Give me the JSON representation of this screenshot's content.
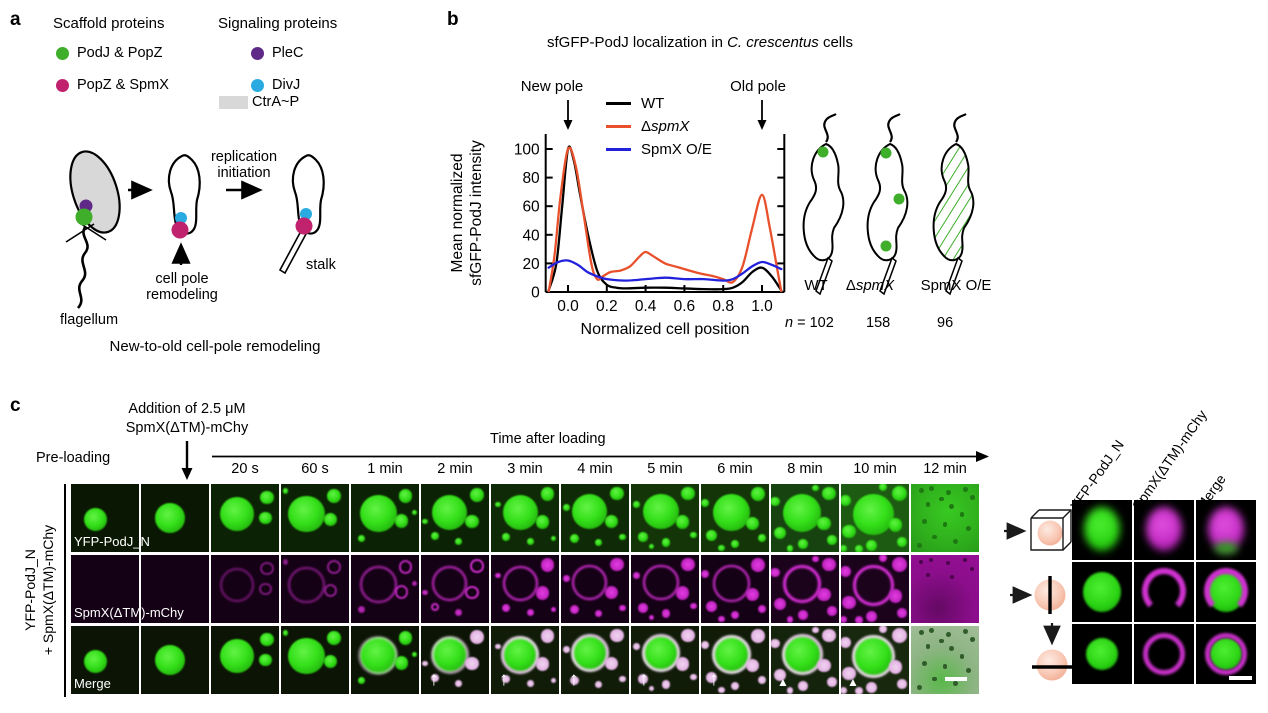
{
  "figure": {
    "panel_a": {
      "label": "a",
      "scaffold": {
        "title": "Scaffold proteins",
        "items": [
          {
            "label": "PodJ & PopZ",
            "color": "#3fae2a"
          },
          {
            "label": "PopZ & SpmX",
            "color": "#c0226e"
          }
        ]
      },
      "signaling": {
        "title": "Signaling proteins",
        "items": [
          {
            "label": "PleC",
            "color": "#5f2a87",
            "shape": "circle"
          },
          {
            "label": "DivJ",
            "color": "#29abe2",
            "shape": "circle"
          },
          {
            "label": "CtrA~P",
            "color": "#d8d8d8",
            "shape": "rect"
          }
        ]
      },
      "diagram": {
        "replication_line1": "replication",
        "replication_line2": "initiation",
        "cell_pole_line1": "cell pole",
        "cell_pole_line2": "remodeling",
        "flagellum": "flagellum",
        "stalk": "stalk",
        "caption": "New-to-old cell-pole remodeling"
      }
    },
    "panel_b": {
      "label": "b",
      "title_prefix": "sfGFP-PodJ localization in ",
      "title_italic": "C. crescentus",
      "title_suffix": " cells",
      "new_pole": "New pole",
      "old_pole": "Old pole",
      "legend": [
        {
          "delta": "",
          "text": "WT",
          "italic": false,
          "color": "#000000"
        },
        {
          "delta": "Δ",
          "text": "spmX",
          "italic": true,
          "color": "#e8512b"
        },
        {
          "delta": "",
          "text": "SpmX O/E",
          "italic": false,
          "color": "#2222dd"
        }
      ],
      "cells": {
        "labels": [
          {
            "delta": "",
            "text": "WT",
            "italic": false
          },
          {
            "delta": "Δ",
            "text": "spmX",
            "italic": true
          },
          {
            "delta": "",
            "text": "SpmX O/E",
            "italic": false
          }
        ],
        "n_symbol": "n",
        "n_eq": " = ",
        "n_values": [
          "102",
          "158",
          "96"
        ]
      }
    },
    "panel_c": {
      "label": "c",
      "addition_line1": "Addition of 2.5 μM",
      "addition_line2": "SpmX(ΔTM)-mChy",
      "preloading": "Pre-loading",
      "time_axis_label": "Time after loading",
      "timepoints": [
        "20 s",
        "60 s",
        "1 min",
        "2 min",
        "3 min",
        "4 min",
        "5 min",
        "6 min",
        "8 min",
        "10 min",
        "12 min"
      ],
      "row_labels": [
        "YFP-PodJ_N",
        "SpmX(ΔTM)-mChy",
        "Merge"
      ],
      "side_label_line1": "YFP-PodJ_N",
      "side_label_line2": "+ SpmX(ΔTM)-mChy",
      "icons": {
        "white_arrow": "↑",
        "white_arrowhead": "▲"
      },
      "right_grid": {
        "col_labels": [
          "YFP-PodJ_N",
          "SpmX(ΔTM)-mChy",
          "Merge"
        ]
      },
      "colors": {
        "droplet_green": "#35e81c",
        "mchy_magenta": "#d42ad4"
      }
    }
  },
  "chart_data": {
    "type": "line",
    "title": "sfGFP-PodJ localization in C. crescentus cells",
    "xlabel": "Normalized cell position",
    "ylabel": "Mean normalized sfGFP-PodJ intensity",
    "ylabel_lines": [
      "Mean normalized",
      "sfGFP-PodJ intensity"
    ],
    "xlim": [
      -0.115,
      1.115
    ],
    "ylim": [
      0,
      107
    ],
    "xticks": [
      0.0,
      0.2,
      0.4,
      0.6,
      0.8,
      1.0
    ],
    "yticks": [
      0,
      20,
      40,
      60,
      80,
      100
    ],
    "grid": false,
    "legend_position": "top-center",
    "annotations": [
      {
        "text": "New pole",
        "x": 0.0
      },
      {
        "text": "Old pole",
        "x": 1.0
      }
    ],
    "series": [
      {
        "name": "WT",
        "color": "#000000",
        "points": [
          [
            -0.1,
            1
          ],
          [
            -0.06,
            20
          ],
          [
            -0.03,
            60
          ],
          [
            0.0,
            100
          ],
          [
            0.03,
            92
          ],
          [
            0.06,
            70
          ],
          [
            0.1,
            42
          ],
          [
            0.15,
            15
          ],
          [
            0.2,
            5
          ],
          [
            0.25,
            3
          ],
          [
            0.3,
            2.5
          ],
          [
            0.4,
            3
          ],
          [
            0.5,
            3
          ],
          [
            0.6,
            2.5
          ],
          [
            0.7,
            2
          ],
          [
            0.8,
            2
          ],
          [
            0.85,
            3
          ],
          [
            0.9,
            7
          ],
          [
            0.95,
            14
          ],
          [
            1.0,
            17
          ],
          [
            1.05,
            11
          ],
          [
            1.1,
            1
          ]
        ]
      },
      {
        "name": "ΔspmX",
        "color": "#e8512b",
        "points": [
          [
            -0.1,
            0
          ],
          [
            -0.07,
            25
          ],
          [
            -0.04,
            65
          ],
          [
            0.0,
            100
          ],
          [
            0.04,
            88
          ],
          [
            0.08,
            55
          ],
          [
            0.12,
            20
          ],
          [
            0.15,
            9
          ],
          [
            0.18,
            11
          ],
          [
            0.22,
            14
          ],
          [
            0.27,
            15
          ],
          [
            0.32,
            18
          ],
          [
            0.37,
            25
          ],
          [
            0.4,
            28
          ],
          [
            0.44,
            25
          ],
          [
            0.5,
            20
          ],
          [
            0.55,
            18
          ],
          [
            0.6,
            16
          ],
          [
            0.68,
            13
          ],
          [
            0.75,
            11
          ],
          [
            0.8,
            9
          ],
          [
            0.85,
            7
          ],
          [
            0.9,
            18
          ],
          [
            0.95,
            45
          ],
          [
            1.0,
            68
          ],
          [
            1.04,
            45
          ],
          [
            1.08,
            15
          ],
          [
            1.1,
            0
          ]
        ]
      },
      {
        "name": "SpmX O/E",
        "color": "#2222dd",
        "points": [
          [
            -0.1,
            17
          ],
          [
            -0.05,
            21
          ],
          [
            0.0,
            22
          ],
          [
            0.05,
            19
          ],
          [
            0.1,
            14
          ],
          [
            0.15,
            11
          ],
          [
            0.2,
            9
          ],
          [
            0.3,
            8
          ],
          [
            0.4,
            9
          ],
          [
            0.5,
            10
          ],
          [
            0.6,
            9
          ],
          [
            0.7,
            9
          ],
          [
            0.8,
            8
          ],
          [
            0.85,
            9
          ],
          [
            0.9,
            13
          ],
          [
            0.95,
            18
          ],
          [
            1.0,
            21
          ],
          [
            1.05,
            19
          ],
          [
            1.1,
            16
          ]
        ]
      }
    ],
    "n_values": {
      "WT": "102",
      "dspmX": "158",
      "SpmX_OE": "96"
    }
  }
}
